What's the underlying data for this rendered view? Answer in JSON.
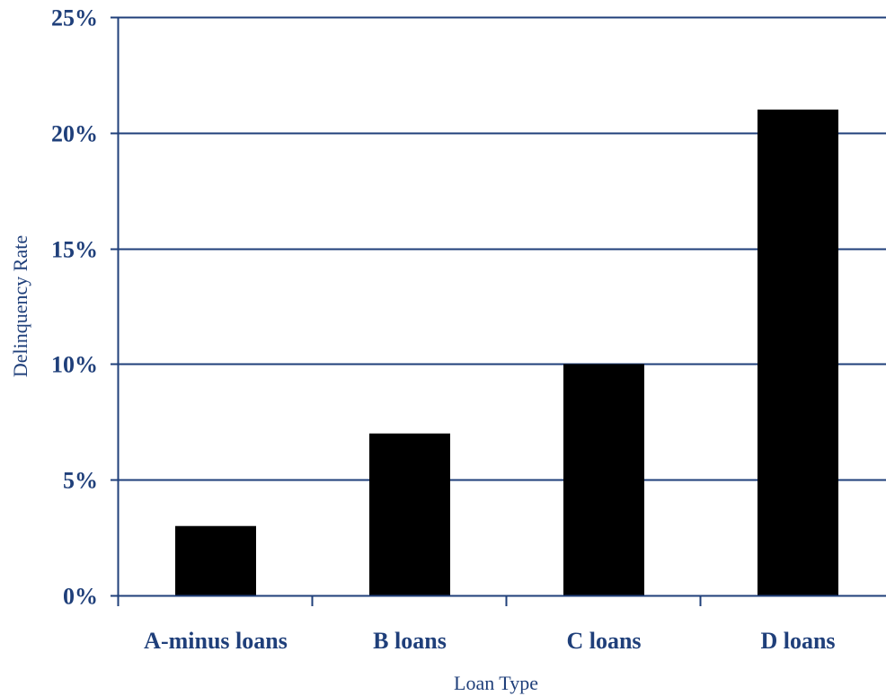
{
  "chart_data": {
    "type": "bar",
    "title": "",
    "xlabel": "Loan Type",
    "ylabel": "Delinquency Rate",
    "categories": [
      "A-minus loans",
      "B loans",
      "C loans",
      "D loans"
    ],
    "values": [
      3,
      7,
      10,
      21
    ],
    "unit": "%",
    "ylim": [
      0,
      25
    ],
    "yticks": [
      0,
      5,
      10,
      15,
      20,
      25
    ],
    "ytick_labels": [
      "0%",
      "5%",
      "10%",
      "15%",
      "20%",
      "25%"
    ],
    "grid": "horizontal",
    "legend": "none",
    "colors": {
      "bar": "#000000",
      "axis": "#1f3f7a",
      "text": "#1f3f7a"
    }
  }
}
